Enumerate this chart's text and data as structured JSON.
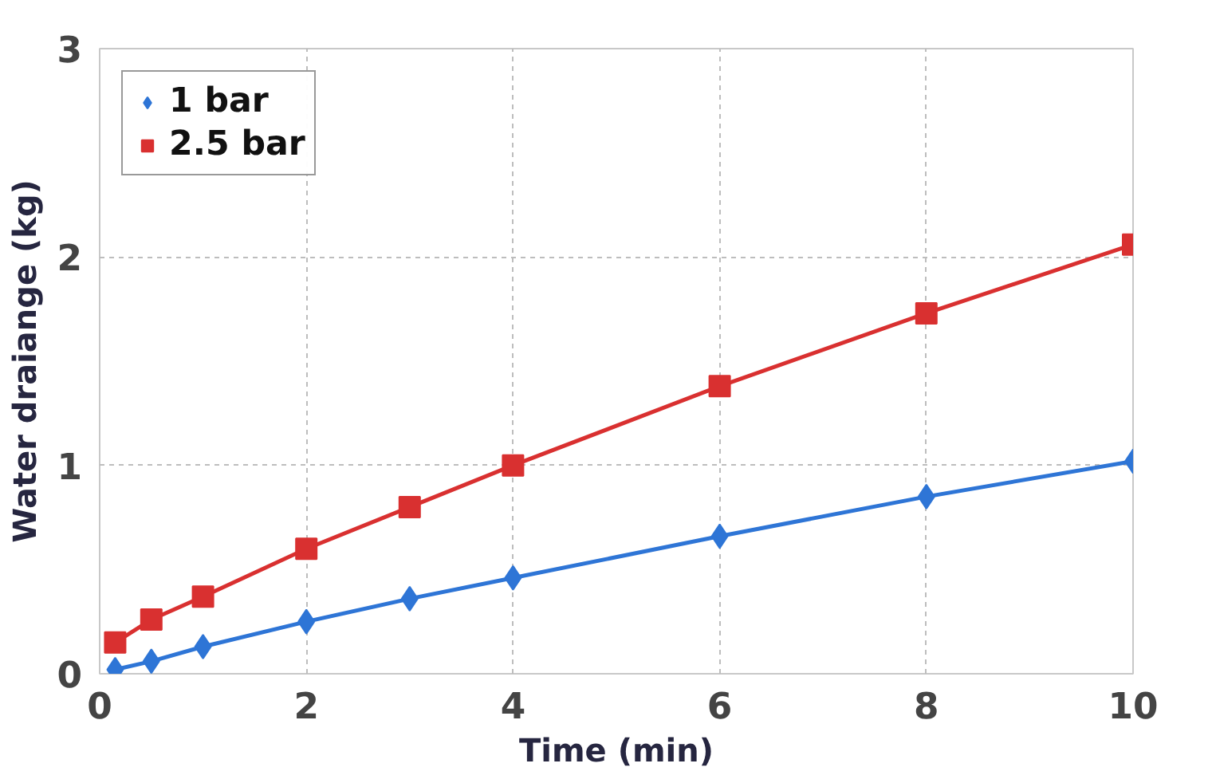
{
  "chart_data": {
    "type": "line",
    "xlabel": "Time (min)",
    "ylabel": "Water draiange (kg)",
    "x": [
      0.15,
      0.5,
      1,
      2,
      3,
      4,
      6,
      8,
      10
    ],
    "series": [
      {
        "name": "1 bar",
        "color": "#2e75d6",
        "marker": "diamond",
        "values": [
          0.02,
          0.06,
          0.13,
          0.25,
          0.36,
          0.46,
          0.66,
          0.85,
          1.02
        ]
      },
      {
        "name": "2.5 bar",
        "color": "#d93030",
        "marker": "square",
        "values": [
          0.15,
          0.26,
          0.37,
          0.6,
          0.8,
          1.0,
          1.38,
          1.73,
          2.06
        ]
      }
    ],
    "xlim": [
      0,
      10
    ],
    "ylim": [
      0,
      3
    ],
    "xticks": [
      0,
      2,
      4,
      6,
      8,
      10
    ],
    "yticks": [
      0,
      1,
      2,
      3
    ],
    "grid": true,
    "legend": "top left",
    "line_style": "solid"
  }
}
